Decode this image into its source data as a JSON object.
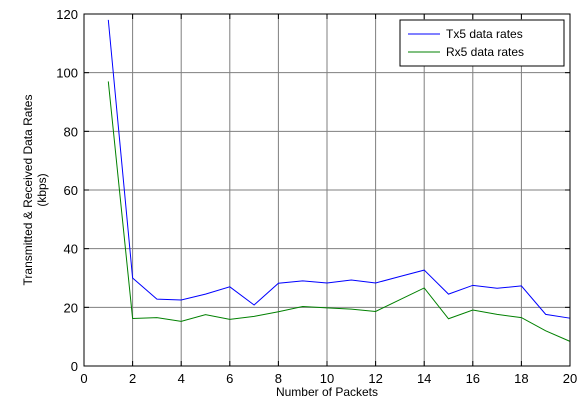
{
  "chart_data": {
    "type": "line",
    "title": "",
    "xlabel": "Number of Packets",
    "ylabel_lines": [
      "Transmitted & Received Data Rates",
      "(kbps)"
    ],
    "xlim": [
      0,
      20
    ],
    "ylim": [
      0,
      120
    ],
    "xticks": [
      0,
      2,
      4,
      6,
      8,
      10,
      12,
      14,
      16,
      18,
      20
    ],
    "yticks": [
      0,
      20,
      40,
      60,
      80,
      100,
      120
    ],
    "grid": true,
    "legend_position": "top-right",
    "x": [
      1,
      2,
      3,
      4,
      5,
      6,
      7,
      8,
      9,
      10,
      11,
      12,
      13,
      14,
      15,
      16,
      17,
      18,
      19,
      20
    ],
    "series": [
      {
        "name": "Tx5 data rates",
        "color": "#0000ff",
        "values": [
          118,
          30,
          22.8,
          22.5,
          24.5,
          27,
          20.8,
          28.2,
          29,
          28.3,
          29.3,
          28.3,
          30.5,
          32.7,
          24.5,
          27.5,
          26.5,
          27.3,
          17.6,
          16.3
        ]
      },
      {
        "name": "Rx5 data rates",
        "color": "#008000",
        "values": [
          97,
          16.2,
          16.5,
          15.2,
          17.5,
          15.9,
          16.9,
          18.5,
          20.3,
          19.8,
          19.4,
          18.6,
          22.6,
          26.6,
          16.1,
          19.1,
          17.6,
          16.5,
          12,
          8.4
        ]
      }
    ]
  }
}
